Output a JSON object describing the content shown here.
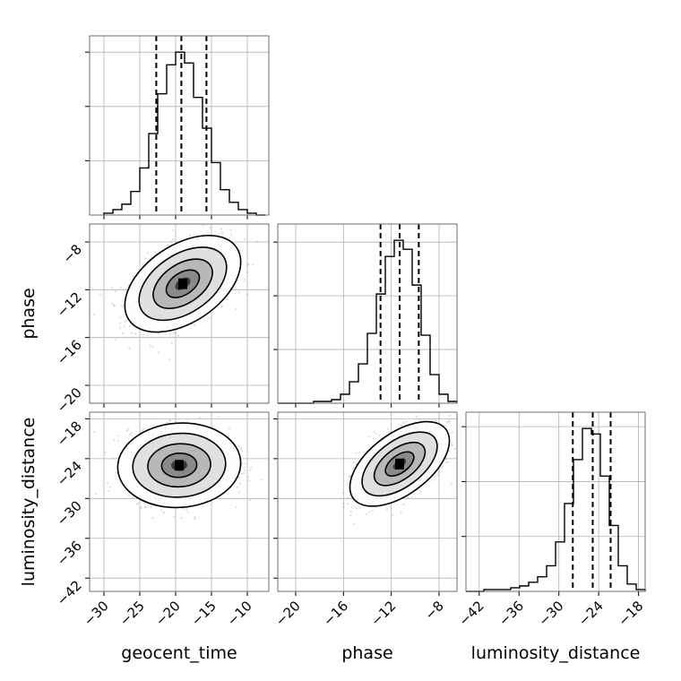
{
  "chart_data": {
    "type": "scatter",
    "plot_kind": "corner",
    "grid": true,
    "parameters": [
      {
        "name": "geocent_time",
        "label": "geocent_time",
        "lim": [
          -32,
          -7
        ],
        "ticks": [
          -30,
          -25,
          -20,
          -15,
          -10
        ],
        "quantiles": [
          -22.7,
          -19.2,
          -15.7
        ]
      },
      {
        "name": "phase",
        "label": "phase",
        "lim": [
          -21.5,
          -6.5
        ],
        "ticks": [
          -20,
          -16,
          -12,
          -8
        ],
        "quantiles": [
          -12.9,
          -11.3,
          -9.7
        ]
      },
      {
        "name": "luminosity_distance",
        "label": "luminosity_distance",
        "lim": [
          -44,
          -17
        ],
        "ticks": [
          -42,
          -36,
          -30,
          -24,
          -18
        ],
        "quantiles": [
          -27.9,
          -24.9,
          -22.2
        ]
      }
    ],
    "histograms": [
      {
        "param": "geocent_time",
        "bin_edges": [
          -30.0,
          -28.75,
          -27.5,
          -26.25,
          -25.0,
          -23.75,
          -22.5,
          -21.25,
          -20.0,
          -18.75,
          -17.5,
          -16.25,
          -15.0,
          -13.75,
          -12.5,
          -11.25,
          -10.0,
          -8.75,
          -7.5
        ],
        "counts": [
          1,
          3,
          6,
          13,
          26,
          45,
          67,
          83,
          90,
          84,
          65,
          48,
          29,
          14,
          7,
          3,
          1,
          0
        ]
      },
      {
        "param": "phase",
        "bin_edges": [
          -21.5,
          -20.75,
          -20.0,
          -19.25,
          -18.5,
          -17.75,
          -17.0,
          -16.25,
          -15.5,
          -14.75,
          -14.0,
          -13.25,
          -12.5,
          -11.75,
          -11.0,
          -10.25,
          -9.5,
          -8.75,
          -8.0,
          -7.25,
          -6.5
        ],
        "counts": [
          0,
          0,
          0,
          0,
          1,
          1,
          2,
          5,
          12,
          22,
          39,
          61,
          82,
          91,
          86,
          66,
          38,
          16,
          5,
          1
        ]
      },
      {
        "param": "luminosity_distance",
        "bin_edges": [
          -44.0,
          -42.65,
          -41.3,
          -39.95,
          -38.6,
          -37.25,
          -35.9,
          -34.55,
          -33.2,
          -31.85,
          -30.5,
          -29.15,
          -27.8,
          -26.45,
          -25.1,
          -23.75,
          -22.4,
          -21.05,
          -19.7,
          -18.35,
          -17.0
        ],
        "counts": [
          0,
          0,
          1,
          1,
          1,
          2,
          3,
          5,
          8,
          14,
          27,
          48,
          72,
          89,
          86,
          63,
          36,
          14,
          4,
          1
        ]
      }
    ],
    "pairs": [
      {
        "x": "geocent_time",
        "y": "phase",
        "center": [
          -19,
          -11.5
        ],
        "sigma": [
          3.3,
          1.65
        ],
        "corr": 0.45
      },
      {
        "x": "geocent_time",
        "y": "luminosity_distance",
        "center": [
          -19.5,
          -25
        ],
        "sigma": [
          3.5,
          2.6
        ],
        "corr": 0.05
      },
      {
        "x": "phase",
        "y": "luminosity_distance",
        "center": [
          -11.3,
          -24.8
        ],
        "sigma": [
          1.7,
          2.6
        ],
        "corr": 0.55
      }
    ]
  }
}
